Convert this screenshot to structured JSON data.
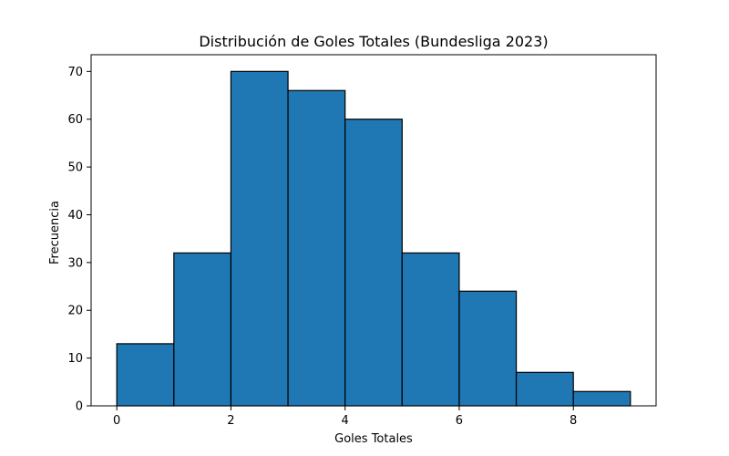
{
  "chart_data": {
    "type": "bar",
    "title": "Distribución de Goles Totales (Bundesliga 2023)",
    "xlabel": "Goles Totales",
    "ylabel": "Frecuencia",
    "bins": [
      {
        "x0": 0,
        "x1": 1,
        "value": 13
      },
      {
        "x0": 1,
        "x1": 2,
        "value": 32
      },
      {
        "x0": 2,
        "x1": 3,
        "value": 70
      },
      {
        "x0": 3,
        "x1": 4,
        "value": 66
      },
      {
        "x0": 4,
        "x1": 5,
        "value": 60
      },
      {
        "x0": 5,
        "x1": 6,
        "value": 32
      },
      {
        "x0": 6,
        "x1": 7,
        "value": 24
      },
      {
        "x0": 7,
        "x1": 8,
        "value": 7
      },
      {
        "x0": 8,
        "x1": 9,
        "value": 3
      }
    ],
    "xlim": [
      -0.45,
      9.45
    ],
    "ylim": [
      0,
      73.5
    ],
    "xticks": [
      0,
      2,
      4,
      6,
      8
    ],
    "yticks": [
      0,
      10,
      20,
      30,
      40,
      50,
      60,
      70
    ],
    "grid": false,
    "bar_color": "#1f77b4",
    "edge_color": "#000000"
  }
}
